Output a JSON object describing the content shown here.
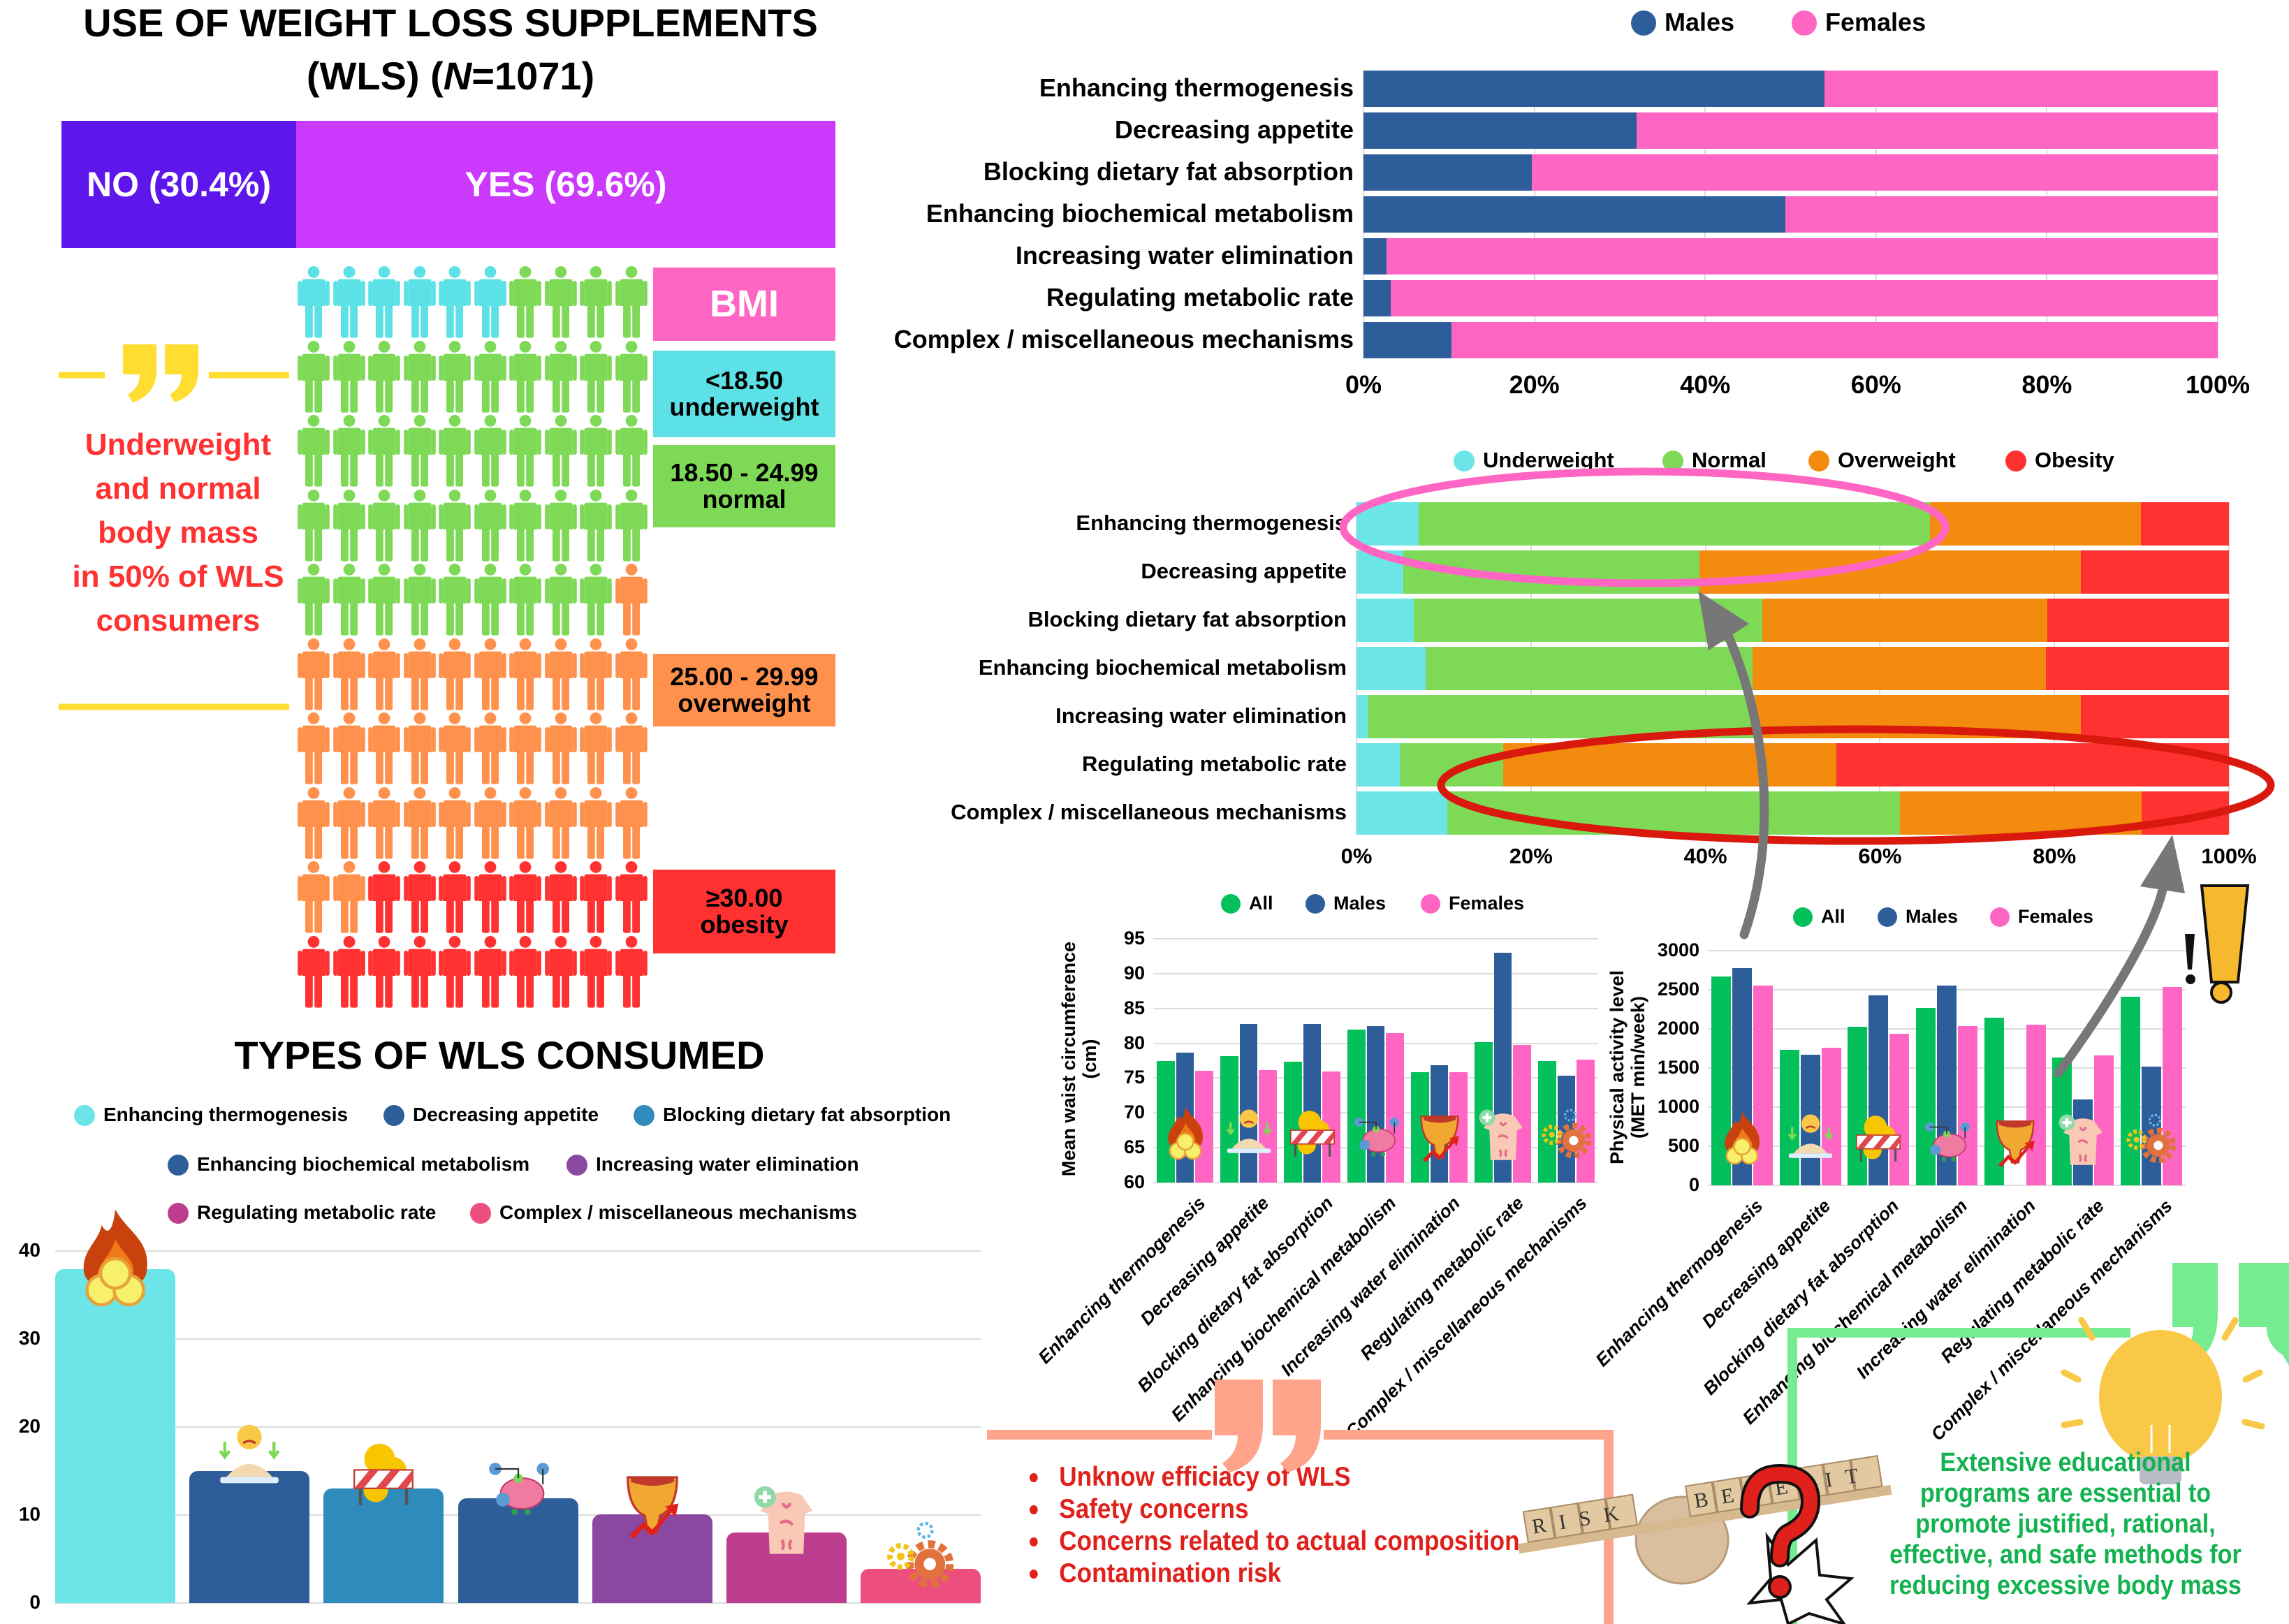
{
  "header": {
    "title_line1": "USE OF WEIGHT LOSS SUPPLEMENTS",
    "title_line2_prefix": "(WLS) (",
    "title_n": "N",
    "title_line2_suffix": "=1071)"
  },
  "usage": {
    "no_label": "NO (30.4%)",
    "yes_label": "YES (69.6%)",
    "no_pct": 30.4,
    "yes_pct": 69.6,
    "no_color": "#5E17EB",
    "yes_color": "#CB3AFC"
  },
  "bmi": {
    "title": "BMI",
    "title_color": "#FF66C4",
    "categories": [
      {
        "range": "<18.50",
        "label": "underweight",
        "count": 6,
        "color": "#5CE1E6"
      },
      {
        "range": "18.50 - 24.99",
        "label": "normal",
        "count": 43,
        "color": "#7ED957"
      },
      {
        "range": "25.00 - 29.99",
        "label": "overweight",
        "count": 33,
        "color": "#FF914D"
      },
      {
        "range": "≥30.00",
        "label": "obesity",
        "count": 18,
        "color": "#FF3131"
      }
    ]
  },
  "callout": {
    "lines": [
      "Underweight",
      "and normal",
      "body mass",
      "in 50% of WLS",
      "consumers"
    ],
    "quote_color": "#FFDE31"
  },
  "risks": {
    "items": [
      "Unknow efficiacy of WLS",
      "Safety concerns",
      "Concerns related to actual composition",
      "Contamination risk"
    ],
    "color": "#E0201B"
  },
  "seesaw": {
    "left_word": "RISK",
    "right_word": "BENEFIT"
  },
  "recommendation": {
    "lines": [
      "Extensive educational",
      "programs are essential to",
      "promote justified, rational,",
      "effective, and safe methods for",
      "reducing excessive body mass"
    ],
    "color": "#12B24F"
  },
  "chart_data": [
    {
      "type": "bar",
      "title": "TYPES OF WLS CONSUMED",
      "categories": [
        "Enhancing thermogenesis",
        "Decreasing appetite",
        "Blocking dietary fat absorption",
        "Enhancing biochemical metabolism",
        "Increasing water elimination",
        "Regulating metabolic rate",
        "Complex / miscellaneous mechanisms"
      ],
      "values": [
        37.9,
        15.0,
        13.0,
        11.9,
        10.1,
        8.0,
        3.9
      ],
      "colors": [
        "#6CE5E8",
        "#2E5E99",
        "#2E8BBB",
        "#2E5E99",
        "#8A48A0",
        "#BD3E8F",
        "#EC4E7E"
      ],
      "icons": [
        "fire-icon",
        "appetite-plate-icon",
        "fat-barrier-icon",
        "metabolism-icon",
        "bladder-icon",
        "body-organs-icon",
        "gears-icon"
      ],
      "ylim": [
        0,
        40
      ],
      "yticks": [
        0,
        10,
        20,
        30,
        40
      ],
      "grid": true,
      "legend": "top"
    },
    {
      "type": "bar",
      "orientation": "horizontal",
      "stacked": true,
      "categories": [
        "Enhancing thermogenesis",
        "Decreasing appetite",
        "Blocking dietary fat absorption",
        "Enhancing biochemical metabolism",
        "Increasing water elimination",
        "Regulating metabolic rate",
        "Complex / miscellaneous mechanisms"
      ],
      "series": [
        {
          "name": "Males",
          "color": "#2E5E99",
          "values": [
            54.0,
            32.0,
            19.7,
            49.4,
            2.7,
            3.2,
            10.3
          ]
        },
        {
          "name": "Females",
          "color": "#FF66C4",
          "values": [
            46.0,
            68.0,
            80.3,
            50.6,
            97.3,
            96.8,
            89.7
          ]
        }
      ],
      "xlim": [
        0,
        100
      ],
      "xticks": [
        "0%",
        "20%",
        "40%",
        "60%",
        "80%",
        "100%"
      ],
      "legend": "top"
    },
    {
      "type": "bar",
      "orientation": "horizontal",
      "stacked": true,
      "categories": [
        "Enhancing thermogenesis",
        "Decreasing appetite",
        "Blocking dietary fat absorption",
        "Enhancing biochemical metabolism",
        "Increasing water elimination",
        "Regulating metabolic rate",
        "Complex / miscellaneous mechanisms"
      ],
      "series": [
        {
          "name": "Underweight",
          "color": "#6CE5E8",
          "values": [
            7.1,
            5.4,
            6.6,
            7.9,
            1.3,
            5.0,
            10.4
          ]
        },
        {
          "name": "Normal",
          "color": "#7ED957",
          "values": [
            58.6,
            33.9,
            39.9,
            37.5,
            44.3,
            11.8,
            51.9
          ]
        },
        {
          "name": "Overweight",
          "color": "#F28B0E",
          "values": [
            24.2,
            43.7,
            32.7,
            33.6,
            37.4,
            38.2,
            27.7
          ]
        },
        {
          "name": "Obesity",
          "color": "#FF3131",
          "values": [
            10.1,
            17.0,
            20.8,
            21.0,
            17.0,
            45.0,
            10.0
          ]
        }
      ],
      "xlim": [
        0,
        100
      ],
      "xticks": [
        "0%",
        "20%",
        "40%",
        "60%",
        "80%",
        "100%"
      ],
      "legend": "top",
      "highlight_colors": [
        "#FF66C4",
        "#D9190D"
      ]
    },
    {
      "type": "bar",
      "categories": [
        "Enhancing thermogenesis",
        "Decreasing appetite",
        "Blocking dietary fat absorption",
        "Enhancing biochemical metabolism",
        "Increasing water elimination",
        "Regulating metabolic rate",
        "Complex / miscellaneous mechanisms"
      ],
      "series": [
        {
          "name": "All",
          "color": "#03C05A",
          "values": [
            77.5,
            78.2,
            77.3,
            82.0,
            75.8,
            80.2,
            77.5
          ]
        },
        {
          "name": "Males",
          "color": "#2E5E99",
          "values": [
            78.7,
            82.8,
            82.8,
            82.5,
            76.8,
            93.0,
            75.3
          ]
        },
        {
          "name": "Females",
          "color": "#FF66C4",
          "values": [
            76.0,
            76.1,
            75.9,
            81.5,
            75.8,
            79.8,
            77.7
          ]
        }
      ],
      "ylabel": [
        "Mean waist circumference",
        "(cm)"
      ],
      "ylim": [
        60,
        95
      ],
      "yticks": [
        60,
        65,
        70,
        75,
        80,
        85,
        90,
        95
      ],
      "grid": true,
      "legend": "top"
    },
    {
      "type": "bar",
      "categories": [
        "Enhancing thermogenesis",
        "Decreasing appetite",
        "Blocking dietary fat absorption",
        "Enhancing biochemical metabolism",
        "Increasing water elimination",
        "Regulating metabolic rate",
        "Complex / miscellaneous mechanisms"
      ],
      "series": [
        {
          "name": "All",
          "color": "#03C05A",
          "values": [
            2670,
            1730,
            2030,
            2270,
            2140,
            1630,
            2410
          ]
        },
        {
          "name": "Males",
          "color": "#2E5E99",
          "values": [
            2780,
            1670,
            2430,
            2550,
            null,
            1100,
            1520
          ]
        },
        {
          "name": "Females",
          "color": "#FF66C4",
          "values": [
            2550,
            1760,
            1940,
            2040,
            2050,
            1660,
            2540
          ]
        }
      ],
      "ylabel": [
        "Physical activity level",
        "(MET min/week)"
      ],
      "ylim": [
        0,
        3000
      ],
      "yticks": [
        0,
        500,
        1000,
        1500,
        2000,
        2500,
        3000
      ],
      "grid": true,
      "legend": "top"
    }
  ]
}
